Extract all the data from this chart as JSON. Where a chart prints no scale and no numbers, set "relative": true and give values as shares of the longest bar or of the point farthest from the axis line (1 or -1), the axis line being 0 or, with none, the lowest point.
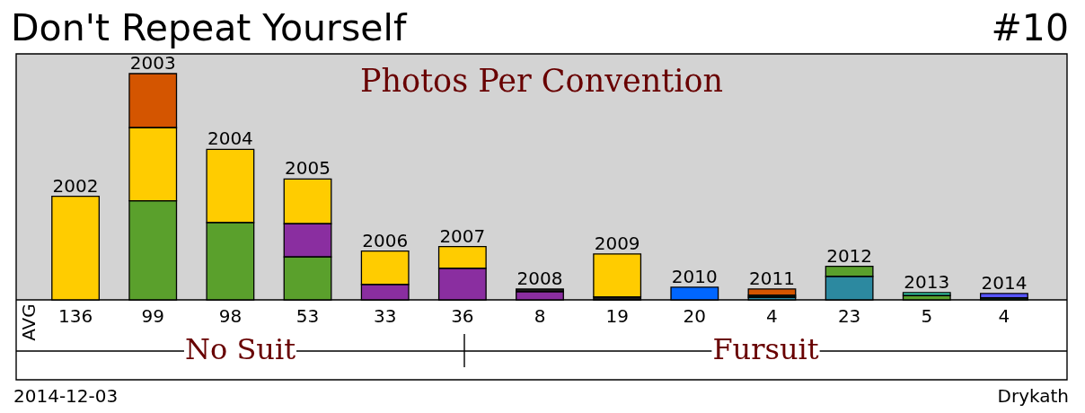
{
  "chart_data": {
    "type": "bar",
    "title": "Photos Per Convention",
    "categories": [
      "2002",
      "2003",
      "2004",
      "2005",
      "2006",
      "2007",
      "2008",
      "2009",
      "2010",
      "2011",
      "2012",
      "2013",
      "2014"
    ],
    "stacked": true,
    "relative": true,
    "series": [
      {
        "values": [
          0.458,
          0.438,
          0.342,
          0.19,
          0.068,
          0.139,
          0.036,
          0.013,
          0.056,
          0.012,
          0.104,
          0.019,
          0.009
        ],
        "colors": [
          "#ffcc00",
          "#5aa02c",
          "#5aa02c",
          "#5aa02c",
          "#8a2ea0",
          "#8a2ea0",
          "#8a2ea0",
          "#1a1a1a",
          "#0066ff",
          "#2c89a0",
          "#2c89a0",
          "#5aa02c",
          "#17503a"
        ]
      },
      {
        "values": [
          null,
          0.323,
          0.323,
          0.147,
          0.148,
          0.097,
          0.012,
          0.19,
          null,
          0.008,
          0.044,
          0.013,
          0.019
        ],
        "colors": [
          null,
          "#ffcc00",
          "#ffcc00",
          "#8a2ea0",
          "#ffcc00",
          "#ffcc00",
          "#1a1a1a",
          "#ffcc00",
          null,
          "#2f4f2f",
          "#5aa02c",
          "#37d7b0",
          "#5555ff"
        ]
      },
      {
        "values": [
          null,
          0.239,
          null,
          0.197,
          null,
          null,
          null,
          null,
          null,
          0.028,
          null,
          null,
          null
        ],
        "colors": [
          null,
          "#d45500",
          null,
          "#ffcc00",
          null,
          null,
          null,
          null,
          null,
          "#d45500",
          null,
          null,
          null
        ]
      }
    ],
    "annotations": [
      "Don't Repeat Yourself",
      "#10",
      "2014-12-03",
      "Drykath",
      "AVG",
      "No Suit",
      "Fursuit",
      "136",
      "99",
      "98",
      "53",
      "33",
      "36",
      "8",
      "19",
      "20",
      "4",
      "23",
      "5",
      "4"
    ]
  }
}
